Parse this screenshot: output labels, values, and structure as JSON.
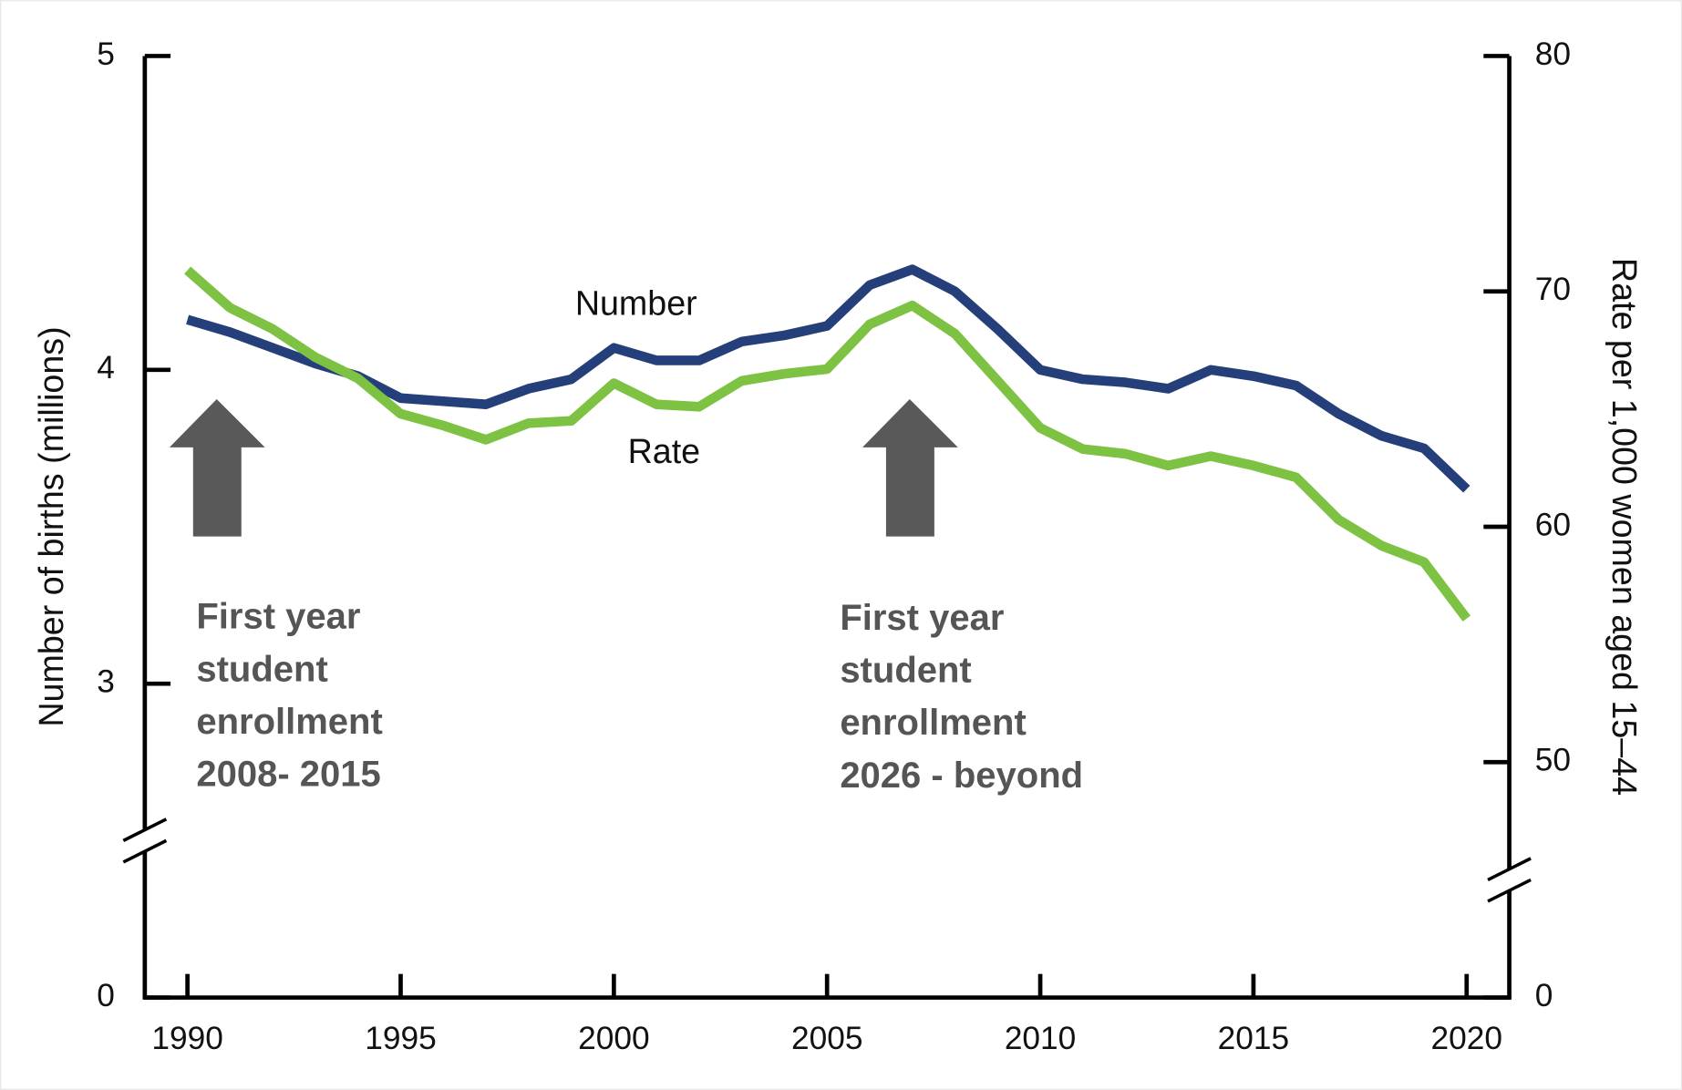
{
  "chart_data": {
    "type": "line",
    "y_label": "Number of births (millions)",
    "y2_label": "Rate per 1,000 women aged 15–44",
    "x": [
      1990,
      1991,
      1992,
      1993,
      1994,
      1995,
      1996,
      1997,
      1998,
      1999,
      2000,
      2001,
      2002,
      2003,
      2004,
      2005,
      2006,
      2007,
      2008,
      2009,
      2010,
      2011,
      2012,
      2013,
      2014,
      2015,
      2016,
      2017,
      2018,
      2019,
      2020
    ],
    "xlim": [
      1989,
      2021
    ],
    "xticks": [
      1990,
      1995,
      2000,
      2005,
      2010,
      2015,
      2020
    ],
    "ylim": [
      0,
      5
    ],
    "yticks": [
      0,
      3,
      4,
      5
    ],
    "ybreak": [
      0,
      3
    ],
    "y2lim": [
      0,
      80
    ],
    "y2ticks": [
      0,
      50,
      60,
      70,
      80
    ],
    "y2break": [
      0,
      50
    ],
    "series": [
      {
        "name": "Number",
        "color": "#243f7a",
        "axis": "y",
        "values": [
          4.16,
          4.12,
          4.07,
          4.02,
          3.98,
          3.91,
          3.9,
          3.89,
          3.94,
          3.97,
          4.07,
          4.03,
          4.03,
          4.09,
          4.11,
          4.14,
          4.27,
          4.32,
          4.25,
          4.13,
          4.0,
          3.97,
          3.96,
          3.94,
          4.0,
          3.98,
          3.95,
          3.86,
          3.79,
          3.75,
          3.62
        ]
      },
      {
        "name": "Rate",
        "color": "#7dc242",
        "axis": "y2",
        "values": [
          70.9,
          69.3,
          68.4,
          67.2,
          66.3,
          64.8,
          64.3,
          63.7,
          64.4,
          64.5,
          66.1,
          65.2,
          65.1,
          66.2,
          66.5,
          66.7,
          68.6,
          69.4,
          68.2,
          66.2,
          64.2,
          63.3,
          63.1,
          62.6,
          63.0,
          62.6,
          62.1,
          60.3,
          59.2,
          58.5,
          56.1
        ]
      }
    ],
    "annotations": [
      {
        "lines": [
          "First year",
          "student",
          "enrollment",
          "2008- 2015"
        ]
      },
      {
        "lines": [
          "First year",
          "student",
          "enrollment",
          "2026 - beyond"
        ]
      }
    ]
  }
}
